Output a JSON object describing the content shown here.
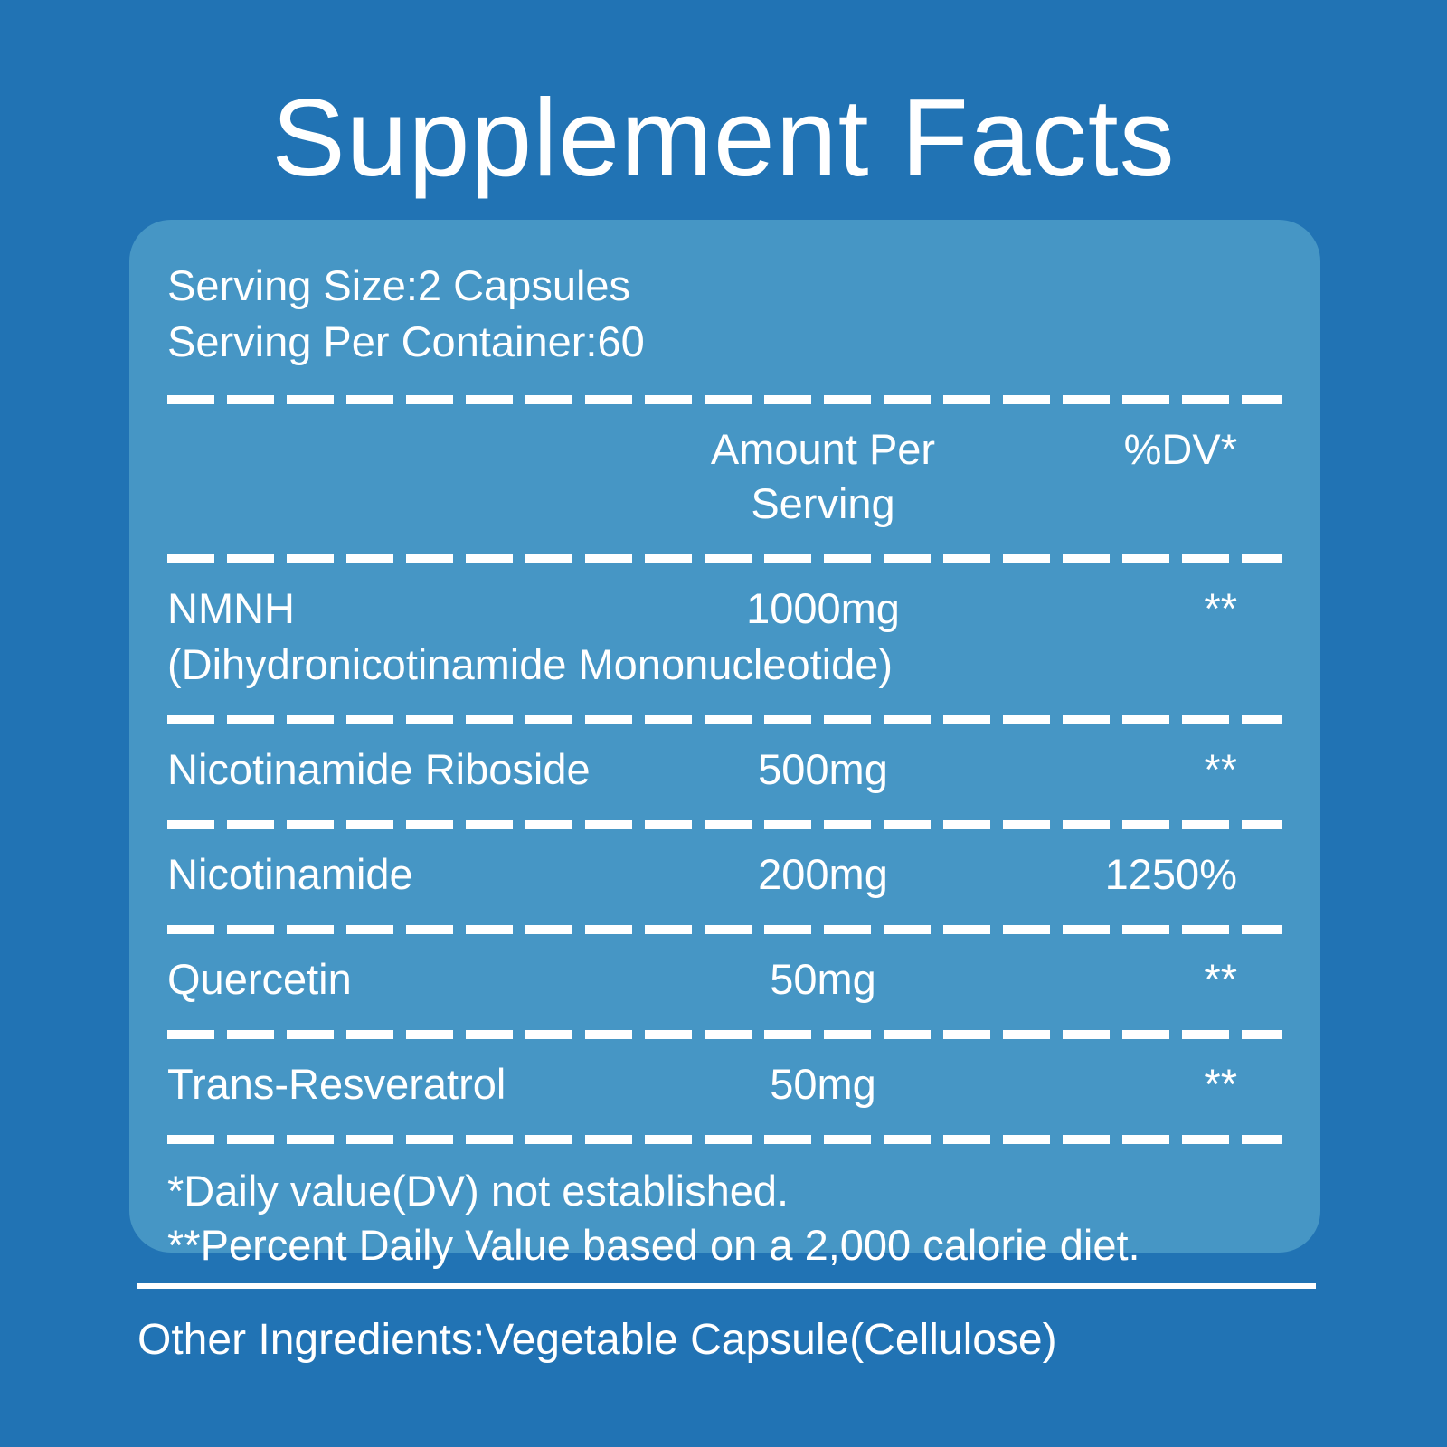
{
  "title": "Supplement Facts",
  "panel": {
    "serving_size": "Serving Size:2 Capsules",
    "serving_per_container": "Serving Per Container:60",
    "header": {
      "amount_label": "Amount Per Serving",
      "dv_label": "%DV*"
    },
    "rows": [
      {
        "name": "NMNH",
        "subname": "(Dihydronicotinamide Mononucleotide)",
        "amount": "1000mg",
        "dv": "**"
      },
      {
        "name": "Nicotinamide Riboside",
        "amount": "500mg",
        "dv": "**"
      },
      {
        "name": "Nicotinamide",
        "amount": "200mg",
        "dv": "1250%"
      },
      {
        "name": "Quercetin",
        "amount": "50mg",
        "dv": "**"
      },
      {
        "name": "Trans-Resveratrol",
        "amount": "50mg",
        "dv": "**"
      }
    ],
    "footnotes": {
      "line1": "*Daily value(DV) not established.",
      "line2": "**Percent Daily Value based on a 2,000 calorie diet."
    }
  },
  "other_ingredients": "Other Ingredients:Vegetable Capsule(Cellulose)",
  "colors": {
    "background": "#2173B4",
    "panel": "#4696C5",
    "text": "#FFFFFF"
  }
}
